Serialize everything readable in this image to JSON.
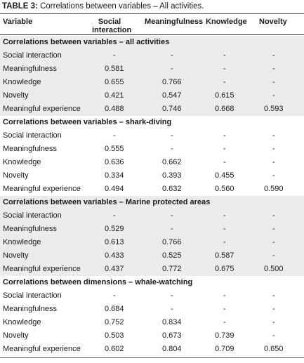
{
  "caption": {
    "label": "TABLE 3:",
    "text": " Correlations between variables – All activities."
  },
  "header": {
    "variable": "Variable",
    "social_line1": "Social",
    "social_line2": "interaction",
    "meaningfulness": "Meaningfulness",
    "knowledge": "Knowledge",
    "novelty": "Novelty"
  },
  "sections": [
    {
      "title": "Correlations between variables – all activities",
      "rows": [
        {
          "label": "Social interaction",
          "values": [
            "-",
            "-",
            "-",
            "-"
          ]
        },
        {
          "label": "Meaningfulness",
          "values": [
            "0.581",
            "-",
            "-",
            "-"
          ]
        },
        {
          "label": "Knowledge",
          "values": [
            "0.655",
            "0.766",
            "-",
            "-"
          ]
        },
        {
          "label": "Novelty",
          "values": [
            "0.421",
            "0.547",
            "0.615",
            "-"
          ]
        },
        {
          "label": "Meaningful experience",
          "values": [
            "0.488",
            "0.746",
            "0.668",
            "0.593"
          ]
        }
      ]
    },
    {
      "title": "Correlations between variables – shark-diving",
      "rows": [
        {
          "label": "Social interaction",
          "values": [
            "-",
            "-",
            "-",
            "-"
          ]
        },
        {
          "label": "Meaningfulness",
          "values": [
            "0.555",
            "-",
            "-",
            "-"
          ]
        },
        {
          "label": "Knowledge",
          "values": [
            "0.636",
            "0.662",
            "-",
            "-"
          ]
        },
        {
          "label": "Novelty",
          "values": [
            "0.334",
            "0.393",
            "0.455",
            "-"
          ]
        },
        {
          "label": "Meaningful experience",
          "values": [
            "0.494",
            "0.632",
            "0.560",
            "0.590"
          ]
        }
      ]
    },
    {
      "title": "Correlations between variables – Marine protected areas",
      "rows": [
        {
          "label": "Social interaction",
          "values": [
            "-",
            "-",
            "-",
            "-"
          ]
        },
        {
          "label": "Meaningfulness",
          "values": [
            "0.529",
            "-",
            "-",
            "-"
          ]
        },
        {
          "label": "Knowledge",
          "values": [
            "0.613",
            "0.766",
            "-",
            "-"
          ]
        },
        {
          "label": "Novelty",
          "values": [
            "0.433",
            "0.525",
            "0.587",
            "-"
          ]
        },
        {
          "label": "Meaningful experience",
          "values": [
            "0.437",
            "0.772",
            "0.675",
            "0.500"
          ]
        }
      ]
    },
    {
      "title": "Correlations between dimensions – whale-watching",
      "rows": [
        {
          "label": "Social interaction",
          "values": [
            "-",
            "-",
            "-",
            "-"
          ]
        },
        {
          "label": "Meaningfulness",
          "values": [
            "0.684",
            "-",
            "-",
            "-"
          ]
        },
        {
          "label": "Knowledge",
          "values": [
            "0.752",
            "0.834",
            "-",
            "-"
          ]
        },
        {
          "label": "Novelty",
          "values": [
            "0.503",
            "0.673",
            "0.739",
            "-"
          ]
        },
        {
          "label": "Meaningful experience",
          "values": [
            "0.602",
            "0.804",
            "0.709",
            "0.650"
          ]
        }
      ]
    }
  ],
  "colors": {
    "shade": "#ececec",
    "rule": "#666666"
  }
}
